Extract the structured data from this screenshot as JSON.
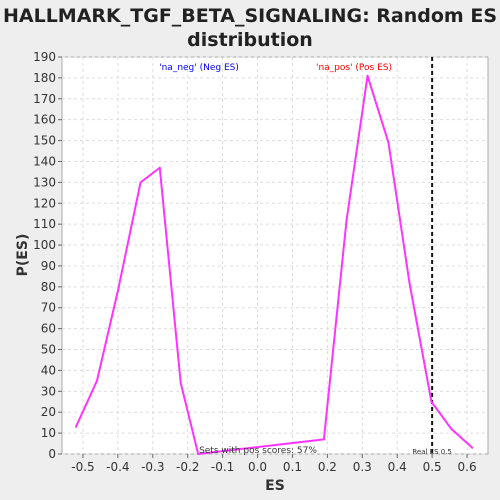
{
  "chart_data": {
    "type": "line",
    "title_line1": "HALLMARK_TGF_BETA_SIGNALING: Random ES",
    "title_line2": "distribution",
    "xlabel": "ES",
    "ylabel": "P(ES)",
    "xlim": [
      -0.56,
      0.66
    ],
    "ylim": [
      0,
      190
    ],
    "xticks": [
      -0.5,
      -0.4,
      -0.3,
      -0.2,
      -0.1,
      0.0,
      0.1,
      0.2,
      0.3,
      0.4,
      0.5,
      0.6
    ],
    "yticks": [
      0,
      10,
      20,
      30,
      40,
      50,
      60,
      70,
      80,
      90,
      100,
      110,
      120,
      130,
      140,
      150,
      160,
      170,
      180,
      190
    ],
    "grid": true,
    "series": [
      {
        "name": "",
        "color": "#ff33ff",
        "x": [
          -0.52,
          -0.46,
          -0.4,
          -0.335,
          -0.28,
          -0.22,
          -0.17,
          0.19,
          0.255,
          0.315,
          0.375,
          0.435,
          0.498,
          0.555,
          0.615
        ],
        "y": [
          13,
          35,
          78,
          130,
          137,
          34,
          0,
          7,
          112,
          181,
          149,
          82,
          25,
          12,
          3
        ]
      }
    ],
    "reference_line": {
      "x": 0.5,
      "label": "Real ES 0.5"
    },
    "annotations": {
      "neg_label": "'na_neg' (Neg ES)",
      "neg_color": "#0000ff",
      "pos_label": "'na_pos' (Pos ES)",
      "pos_color": "#ff0000",
      "pos_scores": "Sets with pos scores: 57%"
    }
  }
}
